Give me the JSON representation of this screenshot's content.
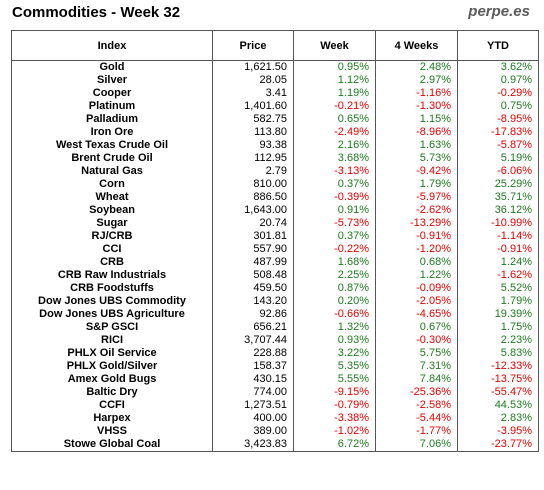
{
  "header": {
    "title": "Commodities - Week 32",
    "brand": "perpe.es"
  },
  "columns": [
    "Index",
    "Price",
    "Week",
    "4 Weeks",
    "YTD"
  ],
  "colors": {
    "positive": "#1f7a1f",
    "negative": "#e60000"
  },
  "rows": [
    {
      "name": "Gold",
      "price": "1,621.50",
      "week": "0.95%",
      "four_weeks": "2.48%",
      "ytd": "3.62%"
    },
    {
      "name": "Silver",
      "price": "28.05",
      "week": "1.12%",
      "four_weeks": "2.97%",
      "ytd": "0.97%"
    },
    {
      "name": "Cooper",
      "price": "3.41",
      "week": "1.19%",
      "four_weeks": "-1.16%",
      "ytd": "-0.29%"
    },
    {
      "name": "Platinum",
      "price": "1,401.60",
      "week": "-0.21%",
      "four_weeks": "-1.30%",
      "ytd": "0.75%"
    },
    {
      "name": "Palladium",
      "price": "582.75",
      "week": "0.65%",
      "four_weeks": "1.15%",
      "ytd": "-8.95%"
    },
    {
      "name": "Iron Ore",
      "price": "113.80",
      "week": "-2.49%",
      "four_weeks": "-8.96%",
      "ytd": "-17.83%"
    },
    {
      "name": "West Texas Crude Oil",
      "price": "93.38",
      "week": "2.16%",
      "four_weeks": "1.63%",
      "ytd": "-5.87%"
    },
    {
      "name": "Brent Crude Oil",
      "price": "112.95",
      "week": "3.68%",
      "four_weeks": "5.73%",
      "ytd": "5.19%"
    },
    {
      "name": "Natural Gas",
      "price": "2.79",
      "week": "-3.13%",
      "four_weeks": "-9.42%",
      "ytd": "-6.06%"
    },
    {
      "name": "Corn",
      "price": "810.00",
      "week": "0.37%",
      "four_weeks": "1.79%",
      "ytd": "25.29%"
    },
    {
      "name": "Wheat",
      "price": "886.50",
      "week": "-0.39%",
      "four_weeks": "-5.97%",
      "ytd": "35.71%"
    },
    {
      "name": "Soybean",
      "price": "1,643.00",
      "week": "0.91%",
      "four_weeks": "-2.62%",
      "ytd": "36.12%"
    },
    {
      "name": "Sugar",
      "price": "20.74",
      "week": "-5.73%",
      "four_weeks": "-13.29%",
      "ytd": "-10.99%"
    },
    {
      "name": "RJ/CRB",
      "price": "301.81",
      "week": "0.37%",
      "four_weeks": "-0.91%",
      "ytd": "-1.14%"
    },
    {
      "name": "CCI",
      "price": "557.90",
      "week": "-0.22%",
      "four_weeks": "-1.20%",
      "ytd": "-0.91%"
    },
    {
      "name": "CRB",
      "price": "487.99",
      "week": "1.68%",
      "four_weeks": "0.68%",
      "ytd": "1.24%"
    },
    {
      "name": "CRB Raw Industrials",
      "price": "508.48",
      "week": "2.25%",
      "four_weeks": "1.22%",
      "ytd": "-1.62%"
    },
    {
      "name": "CRB Foodstuffs",
      "price": "459.50",
      "week": "0.87%",
      "four_weeks": "-0.09%",
      "ytd": "5.52%"
    },
    {
      "name": "Dow Jones UBS Commodity",
      "price": "143.20",
      "week": "0.20%",
      "four_weeks": "-2.05%",
      "ytd": "1.79%"
    },
    {
      "name": "Dow Jones UBS Agriculture",
      "price": "92.86",
      "week": "-0.66%",
      "four_weeks": "-4.65%",
      "ytd": "19.39%"
    },
    {
      "name": "S&P GSCI",
      "price": "656.21",
      "week": "1.32%",
      "four_weeks": "0.67%",
      "ytd": "1.75%"
    },
    {
      "name": "RICI",
      "price": "3,707.44",
      "week": "0.93%",
      "four_weeks": "-0.30%",
      "ytd": "2.23%"
    },
    {
      "name": "PHLX Oil Service",
      "price": "228.88",
      "week": "3.22%",
      "four_weeks": "5.75%",
      "ytd": "5.83%"
    },
    {
      "name": "PHLX Gold/Silver",
      "price": "158.37",
      "week": "5.35%",
      "four_weeks": "7.31%",
      "ytd": "-12.33%"
    },
    {
      "name": "Amex Gold Bugs",
      "price": "430.15",
      "week": "5.55%",
      "four_weeks": "7.84%",
      "ytd": "-13.75%"
    },
    {
      "name": "Baltic Dry",
      "price": "774.00",
      "week": "-9.15%",
      "four_weeks": "-25.36%",
      "ytd": "-55.47%"
    },
    {
      "name": "CCFI",
      "price": "1,273.51",
      "week": "-0.79%",
      "four_weeks": "-2.58%",
      "ytd": "44.53%"
    },
    {
      "name": "Harpex",
      "price": "400.00",
      "week": "-3.38%",
      "four_weeks": "-5.44%",
      "ytd": "2.83%"
    },
    {
      "name": "VHSS",
      "price": "389.00",
      "week": "-1.02%",
      "four_weeks": "-1.77%",
      "ytd": "-3.95%"
    },
    {
      "name": "Stowe Global Coal",
      "price": "3,423.83",
      "week": "6.72%",
      "four_weeks": "7.06%",
      "ytd": "-23.77%"
    }
  ]
}
